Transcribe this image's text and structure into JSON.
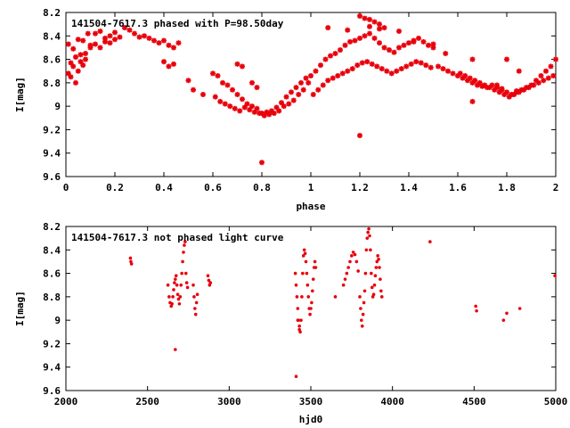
{
  "colors": {
    "points": "#e8000b",
    "axis": "#000000",
    "background": "#ffffff"
  },
  "chart_data": [
    {
      "type": "scatter",
      "title": "141504-7617.3 phased with P=98.50day",
      "xlabel": "phase",
      "ylabel": "I[mag]",
      "xlim": [
        0,
        2
      ],
      "ylim": [
        8.2,
        9.6
      ],
      "y_inverted": true,
      "grid": false,
      "xticks": [
        "0",
        "0.2",
        "0.4",
        "0.6",
        "0.8",
        "1",
        "1.2",
        "1.4",
        "1.6",
        "1.8",
        "2"
      ],
      "yticks": [
        "8.2",
        "8.4",
        "8.6",
        "8.8",
        "9",
        "9.2",
        "9.4",
        "9.6"
      ],
      "marker": "asterisk",
      "x": [
        0.01,
        0.02,
        0.03,
        0.04,
        0.05,
        0.06,
        0.07,
        0.08,
        0.09,
        0.1,
        0.01,
        0.03,
        0.05,
        0.07,
        0.02,
        0.04,
        0.06,
        0.08,
        0.1,
        0.12,
        0.14,
        0.16,
        0.18,
        0.2,
        0.22,
        0.12,
        0.14,
        0.16,
        0.18,
        0.2,
        0.24,
        0.26,
        0.28,
        0.3,
        0.32,
        0.34,
        0.36,
        0.38,
        0.4,
        0.42,
        0.44,
        0.46,
        0.4,
        0.42,
        0.44,
        0.5,
        0.52,
        0.56,
        0.6,
        0.62,
        0.64,
        0.66,
        0.68,
        0.7,
        0.72,
        0.74,
        0.76,
        0.78,
        0.8,
        0.82,
        0.84,
        0.86,
        0.88,
        0.9,
        0.92,
        0.94,
        0.96,
        0.98,
        0.61,
        0.63,
        0.65,
        0.67,
        0.69,
        0.71,
        0.73,
        0.75,
        0.77,
        0.79,
        0.81,
        0.83,
        0.85,
        0.87,
        0.89,
        0.91,
        0.93,
        0.95,
        0.97,
        0.99,
        0.7,
        0.72,
        0.76,
        0.78,
        1.0,
        1.02,
        1.04,
        1.06,
        1.08,
        1.1,
        1.12,
        1.14,
        1.16,
        1.18,
        1.2,
        1.22,
        1.24,
        1.26,
        1.28,
        1.3,
        1.32,
        1.34,
        1.36,
        1.38,
        1.4,
        1.42,
        1.44,
        1.46,
        1.48,
        1.5,
        1.01,
        1.03,
        1.05,
        1.07,
        1.09,
        1.11,
        1.13,
        1.15,
        1.17,
        1.19,
        1.21,
        1.23,
        1.25,
        1.27,
        1.29,
        1.31,
        1.33,
        1.35,
        1.37,
        1.39,
        1.41,
        1.43,
        1.45,
        1.47,
        1.49,
        1.52,
        1.54,
        1.56,
        1.58,
        1.6,
        1.62,
        1.64,
        1.66,
        1.68,
        1.7,
        1.72,
        1.74,
        1.76,
        1.78,
        1.8,
        1.82,
        1.84,
        1.86,
        1.88,
        1.9,
        1.92,
        1.94,
        1.96,
        1.98,
        2.0,
        1.61,
        1.63,
        1.65,
        1.67,
        1.69,
        1.71,
        1.73,
        1.75,
        1.77,
        1.79,
        1.81,
        1.83,
        1.85,
        1.87,
        1.89,
        1.91,
        1.93,
        1.95,
        1.97,
        1.99,
        1.07,
        1.15,
        1.2,
        1.22,
        1.24,
        1.26,
        1.28,
        1.3,
        1.2,
        1.24,
        1.28,
        1.36,
        1.42,
        1.5,
        1.55,
        1.66,
        1.8,
        1.85,
        1.76,
        1.78,
        1.82,
        1.84
      ],
      "y": [
        8.47,
        8.63,
        8.51,
        8.58,
        8.43,
        8.62,
        8.44,
        8.6,
        8.38,
        8.5,
        8.72,
        8.66,
        8.7,
        8.65,
        8.75,
        8.8,
        8.56,
        8.55,
        8.48,
        8.47,
        8.5,
        8.45,
        8.46,
        8.43,
        8.41,
        8.38,
        8.36,
        8.42,
        8.4,
        8.37,
        8.33,
        8.35,
        8.38,
        8.41,
        8.4,
        8.42,
        8.44,
        8.46,
        8.44,
        8.48,
        8.5,
        8.46,
        8.62,
        8.66,
        8.64,
        8.78,
        8.86,
        8.9,
        8.72,
        8.74,
        8.8,
        8.82,
        8.86,
        8.9,
        8.94,
        8.98,
        9.0,
        9.02,
        9.06,
        9.05,
        9.04,
        9.01,
        8.97,
        8.92,
        8.88,
        8.84,
        8.8,
        8.76,
        8.92,
        8.96,
        8.98,
        9.0,
        9.02,
        9.04,
        9.01,
        9.03,
        9.05,
        9.06,
        9.08,
        9.07,
        9.06,
        9.04,
        9.0,
        8.98,
        8.95,
        8.9,
        8.86,
        8.8,
        8.64,
        8.66,
        8.8,
        8.84,
        8.74,
        8.7,
        8.65,
        8.6,
        8.57,
        8.55,
        8.52,
        8.48,
        8.45,
        8.44,
        8.42,
        8.4,
        8.38,
        8.42,
        8.46,
        8.5,
        8.52,
        8.54,
        8.5,
        8.48,
        8.46,
        8.44,
        8.42,
        8.45,
        8.48,
        8.5,
        8.9,
        8.86,
        8.82,
        8.78,
        8.76,
        8.74,
        8.72,
        8.7,
        8.68,
        8.65,
        8.63,
        8.62,
        8.64,
        8.66,
        8.68,
        8.7,
        8.72,
        8.7,
        8.68,
        8.66,
        8.64,
        8.62,
        8.63,
        8.65,
        8.67,
        8.66,
        8.68,
        8.7,
        8.72,
        8.74,
        8.76,
        8.78,
        8.8,
        8.82,
        8.83,
        8.84,
        8.82,
        8.84,
        8.86,
        8.88,
        8.9,
        8.88,
        8.86,
        8.84,
        8.82,
        8.78,
        8.74,
        8.7,
        8.66,
        8.6,
        8.72,
        8.74,
        8.76,
        8.78,
        8.8,
        8.82,
        8.84,
        8.86,
        8.88,
        8.9,
        8.92,
        8.9,
        8.88,
        8.86,
        8.84,
        8.82,
        8.8,
        8.78,
        8.76,
        8.74,
        8.33,
        8.35,
        8.23,
        8.25,
        8.26,
        8.28,
        8.3,
        8.33,
        9.25,
        8.32,
        8.34,
        8.36,
        8.45,
        8.47,
        8.55,
        8.6,
        8.6,
        8.7,
        8.82,
        8.85,
        8.9,
        8.87
      ],
      "extra_points": [
        [
          0.8,
          9.48
        ],
        [
          1.66,
          8.96
        ]
      ]
    },
    {
      "type": "scatter",
      "title": "141504-7617.3 not phased light curve",
      "xlabel": "hjd0",
      "ylabel": "I[mag]",
      "xlim": [
        2000,
        5000
      ],
      "ylim": [
        8.2,
        9.6
      ],
      "y_inverted": true,
      "grid": false,
      "xticks": [
        "2000",
        "2500",
        "3000",
        "3500",
        "4000",
        "4500",
        "5000"
      ],
      "yticks": [
        "8.2",
        "8.4",
        "8.6",
        "8.8",
        "9",
        "9.2",
        "9.4",
        "9.6"
      ],
      "marker": "dot",
      "x": [
        2395,
        2398,
        2402,
        2625,
        2632,
        2638,
        2645,
        2650,
        2655,
        2660,
        2665,
        2670,
        2675,
        2680,
        2685,
        2690,
        2695,
        2700,
        2705,
        2710,
        2715,
        2720,
        2725,
        2730,
        2735,
        2740,
        2745,
        2670,
        2780,
        2785,
        2790,
        2795,
        2800,
        2805,
        2870,
        2875,
        2880,
        2885,
        3405,
        3410,
        3415,
        3420,
        3425,
        3430,
        3435,
        3440,
        3445,
        3450,
        3455,
        3460,
        3465,
        3470,
        3475,
        3480,
        3485,
        3490,
        3495,
        3500,
        3505,
        3510,
        3515,
        3520,
        3525,
        3530,
        3410,
        3420,
        3430,
        3650,
        3700,
        3710,
        3720,
        3730,
        3740,
        3750,
        3760,
        3770,
        3780,
        3790,
        3800,
        3805,
        3810,
        3815,
        3820,
        3825,
        3830,
        3835,
        3840,
        3845,
        3850,
        3855,
        3860,
        3865,
        3870,
        3875,
        3880,
        3885,
        3890,
        3895,
        3900,
        3905,
        3910,
        3915,
        3920,
        3925,
        3930,
        3935,
        4230,
        4510,
        4515,
        4680,
        4700,
        4780,
        4995
      ],
      "y": [
        8.47,
        8.5,
        8.52,
        8.7,
        8.8,
        8.85,
        8.88,
        8.86,
        8.8,
        8.74,
        8.68,
        8.65,
        8.62,
        8.7,
        8.78,
        8.82,
        8.86,
        8.8,
        8.7,
        8.6,
        8.5,
        8.42,
        8.36,
        8.33,
        8.6,
        8.68,
        8.72,
        9.25,
        8.7,
        8.8,
        8.9,
        8.95,
        8.85,
        8.78,
        8.62,
        8.66,
        8.7,
        8.68,
        8.6,
        8.7,
        8.8,
        8.9,
        9.0,
        9.05,
        9.1,
        9.0,
        8.8,
        8.6,
        8.45,
        8.4,
        8.43,
        8.5,
        8.6,
        8.7,
        8.8,
        8.9,
        8.95,
        8.9,
        8.85,
        8.75,
        8.65,
        8.55,
        8.5,
        8.55,
        9.48,
        9.0,
        9.08,
        8.8,
        8.7,
        8.65,
        8.6,
        8.55,
        8.5,
        8.45,
        8.42,
        8.44,
        8.5,
        8.58,
        8.8,
        8.9,
        9.0,
        9.05,
        8.95,
        8.85,
        8.75,
        8.6,
        8.4,
        8.3,
        8.25,
        8.22,
        8.28,
        8.4,
        8.6,
        8.72,
        8.8,
        8.78,
        8.7,
        8.62,
        8.55,
        8.5,
        8.45,
        8.48,
        8.55,
        8.65,
        8.75,
        8.8,
        8.33,
        8.88,
        8.92,
        9.0,
        8.94,
        8.9,
        8.62
      ]
    }
  ]
}
